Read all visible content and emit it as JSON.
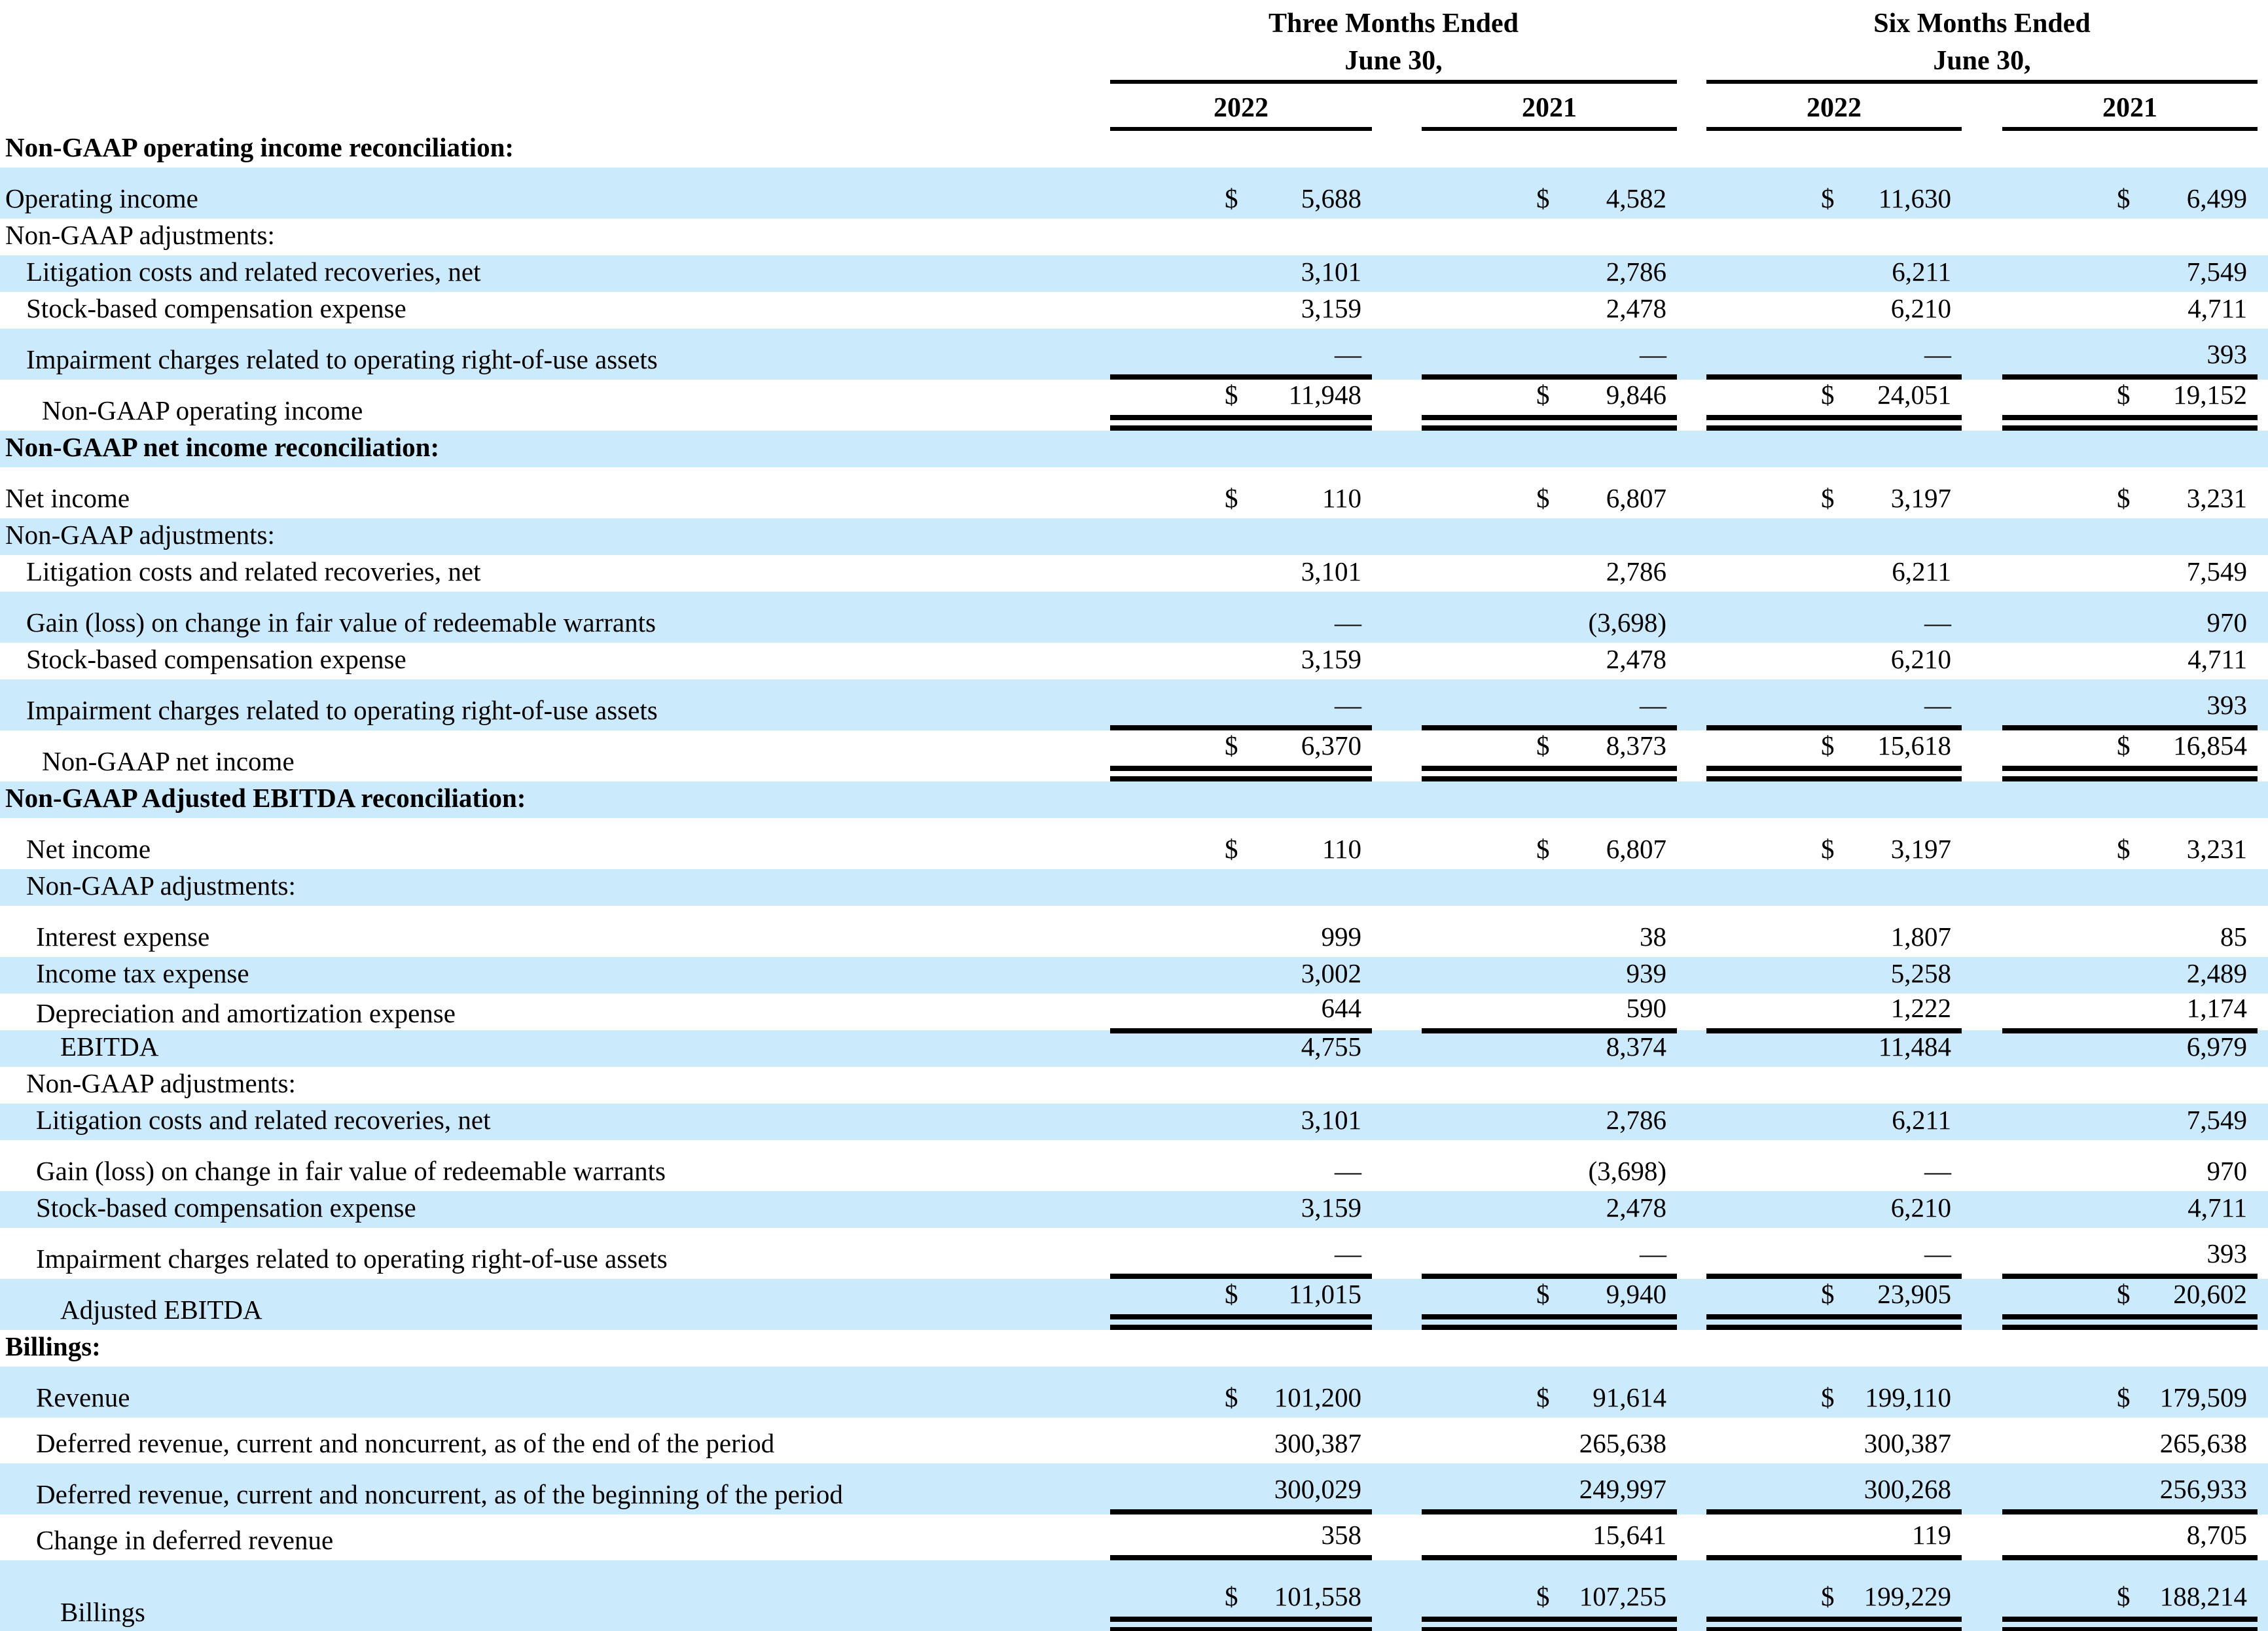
{
  "colors": {
    "row_highlight": "#cbeafb",
    "text": "#000000",
    "background": "#ffffff",
    "rule": "#000000"
  },
  "table": {
    "groups": [
      {
        "title": "Three Months Ended",
        "subtitle": "June 30,",
        "years": [
          "2022",
          "2021"
        ]
      },
      {
        "title": "Six Months Ended",
        "subtitle": "June 30,",
        "years": [
          "2022",
          "2021"
        ]
      }
    ],
    "rows": [
      {
        "label": "Non-GAAP operating income reconciliation:"
      },
      {
        "label": "Operating income",
        "dollar": "$",
        "values": [
          "5,688",
          "4,582",
          "11,630",
          "6,499"
        ]
      },
      {
        "label": "Non-GAAP adjustments:"
      },
      {
        "label": "Litigation costs and related recoveries, net",
        "values": [
          "3,101",
          "2,786",
          "6,211",
          "7,549"
        ]
      },
      {
        "label": "Stock-based compensation expense",
        "values": [
          "3,159",
          "2,478",
          "6,210",
          "4,711"
        ]
      },
      {
        "label": "Impairment charges related to operating right-of-use assets",
        "values": [
          "—",
          "—",
          "—",
          "393"
        ]
      },
      {
        "label": "Non-GAAP operating income",
        "dollar": "$",
        "values": [
          "11,948",
          "9,846",
          "24,051",
          "19,152"
        ]
      },
      {
        "label": "Non-GAAP net income reconciliation:"
      },
      {
        "label": "Net income",
        "dollar": "$",
        "values": [
          "110",
          "6,807",
          "3,197",
          "3,231"
        ]
      },
      {
        "label": "Non-GAAP adjustments:"
      },
      {
        "label": "Litigation costs and related recoveries, net",
        "values": [
          "3,101",
          "2,786",
          "6,211",
          "7,549"
        ]
      },
      {
        "label": "Gain (loss) on change in fair value of redeemable warrants",
        "values": [
          "—",
          "(3,698)",
          "—",
          "970"
        ]
      },
      {
        "label": "Stock-based compensation expense",
        "values": [
          "3,159",
          "2,478",
          "6,210",
          "4,711"
        ]
      },
      {
        "label": "Impairment charges related to operating right-of-use assets",
        "values": [
          "—",
          "—",
          "—",
          "393"
        ]
      },
      {
        "label": "Non-GAAP net income",
        "dollar": "$",
        "values": [
          "6,370",
          "8,373",
          "15,618",
          "16,854"
        ]
      },
      {
        "label": "Non-GAAP Adjusted EBITDA reconciliation:"
      },
      {
        "label": "Net income",
        "dollar": "$",
        "values": [
          "110",
          "6,807",
          "3,197",
          "3,231"
        ]
      },
      {
        "label": "Non-GAAP adjustments:"
      },
      {
        "label": "Interest expense",
        "values": [
          "999",
          "38",
          "1,807",
          "85"
        ]
      },
      {
        "label": "Income tax expense",
        "values": [
          "3,002",
          "939",
          "5,258",
          "2,489"
        ]
      },
      {
        "label": "Depreciation and amortization expense",
        "values": [
          "644",
          "590",
          "1,222",
          "1,174"
        ]
      },
      {
        "label": "EBITDA",
        "values": [
          "4,755",
          "8,374",
          "11,484",
          "6,979"
        ]
      },
      {
        "label": "Non-GAAP adjustments:"
      },
      {
        "label": "Litigation costs and related recoveries, net",
        "values": [
          "3,101",
          "2,786",
          "6,211",
          "7,549"
        ]
      },
      {
        "label": "Gain (loss) on change in fair value of redeemable warrants",
        "values": [
          "—",
          "(3,698)",
          "—",
          "970"
        ]
      },
      {
        "label": "Stock-based compensation expense",
        "values": [
          "3,159",
          "2,478",
          "6,210",
          "4,711"
        ]
      },
      {
        "label": "Impairment charges related to operating right-of-use assets",
        "values": [
          "—",
          "—",
          "—",
          "393"
        ]
      },
      {
        "label": "Adjusted EBITDA",
        "dollar": "$",
        "values": [
          "11,015",
          "9,940",
          "23,905",
          "20,602"
        ]
      },
      {
        "label": "Billings:"
      },
      {
        "label": "Revenue",
        "dollar": "$",
        "values": [
          "101,200",
          "91,614",
          "199,110",
          "179,509"
        ]
      },
      {
        "label": "Deferred revenue, current and noncurrent, as of the end of the period",
        "values": [
          "300,387",
          "265,638",
          "300,387",
          "265,638"
        ]
      },
      {
        "label": "Deferred revenue, current and noncurrent, as of the beginning of the period",
        "values": [
          "300,029",
          "249,997",
          "300,268",
          "256,933"
        ]
      },
      {
        "label": "Change in deferred revenue",
        "values": [
          "358",
          "15,641",
          "119",
          "8,705"
        ]
      },
      {
        "label": "Billings",
        "dollar": "$",
        "values": [
          "101,558",
          "107,255",
          "199,229",
          "188,214"
        ]
      }
    ]
  }
}
